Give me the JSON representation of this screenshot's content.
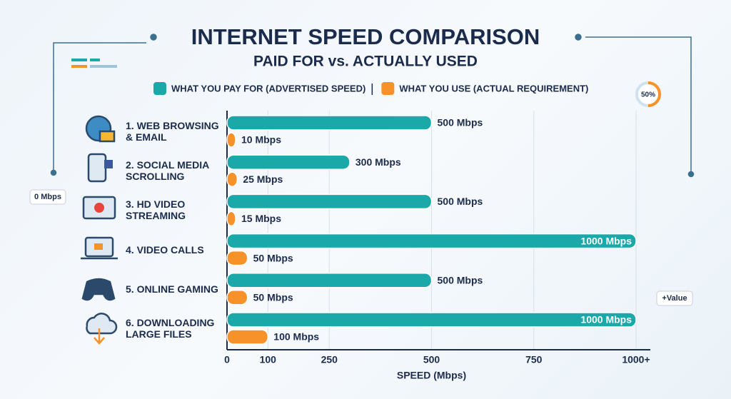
{
  "chart_data": {
    "type": "bar",
    "orientation": "horizontal",
    "title": "INTERNET SPEED COMPARISON",
    "subtitle": "PAID FOR vs. ACTUALLY USED",
    "xlabel": "SPEED (Mbps)",
    "categories": [
      "1. WEB BROWSING & EMAIL",
      "2. SOCIAL MEDIA SCROLLING",
      "3. HD VIDEO STREAMING",
      "4. VIDEO CALLS",
      "5. ONLINE GAMING",
      "6. DOWNLOADING LARGE FILES"
    ],
    "series": [
      {
        "name": "WHAT YOU PAY FOR (ADVERTISED SPEED)",
        "color": "#1ba8a8",
        "values": [
          500,
          300,
          500,
          1000,
          500,
          1000
        ],
        "value_labels": [
          "500 Mbps",
          "300 Mbps",
          "500 Mbps",
          "1000 Mbps",
          "500 Mbps",
          "1000 Mbps"
        ]
      },
      {
        "name": "WHAT YOU USE (ACTUAL REQUIREMENT)",
        "color": "#f7922a",
        "values": [
          10,
          25,
          15,
          50,
          50,
          100
        ],
        "value_labels": [
          "10 Mbps",
          "25 Mbps",
          "15 Mbps",
          "50 Mbps",
          "50 Mbps",
          "100 Mbps"
        ]
      }
    ],
    "xlim": [
      0,
      1000
    ],
    "xticks": [
      0,
      100,
      250,
      500,
      750,
      {
        "value": 1000,
        "label": "1000+"
      }
    ],
    "grid": true
  },
  "decorations": {
    "badge_left": "0 Mbps",
    "badge_right": "+Value",
    "ring": "50%"
  }
}
